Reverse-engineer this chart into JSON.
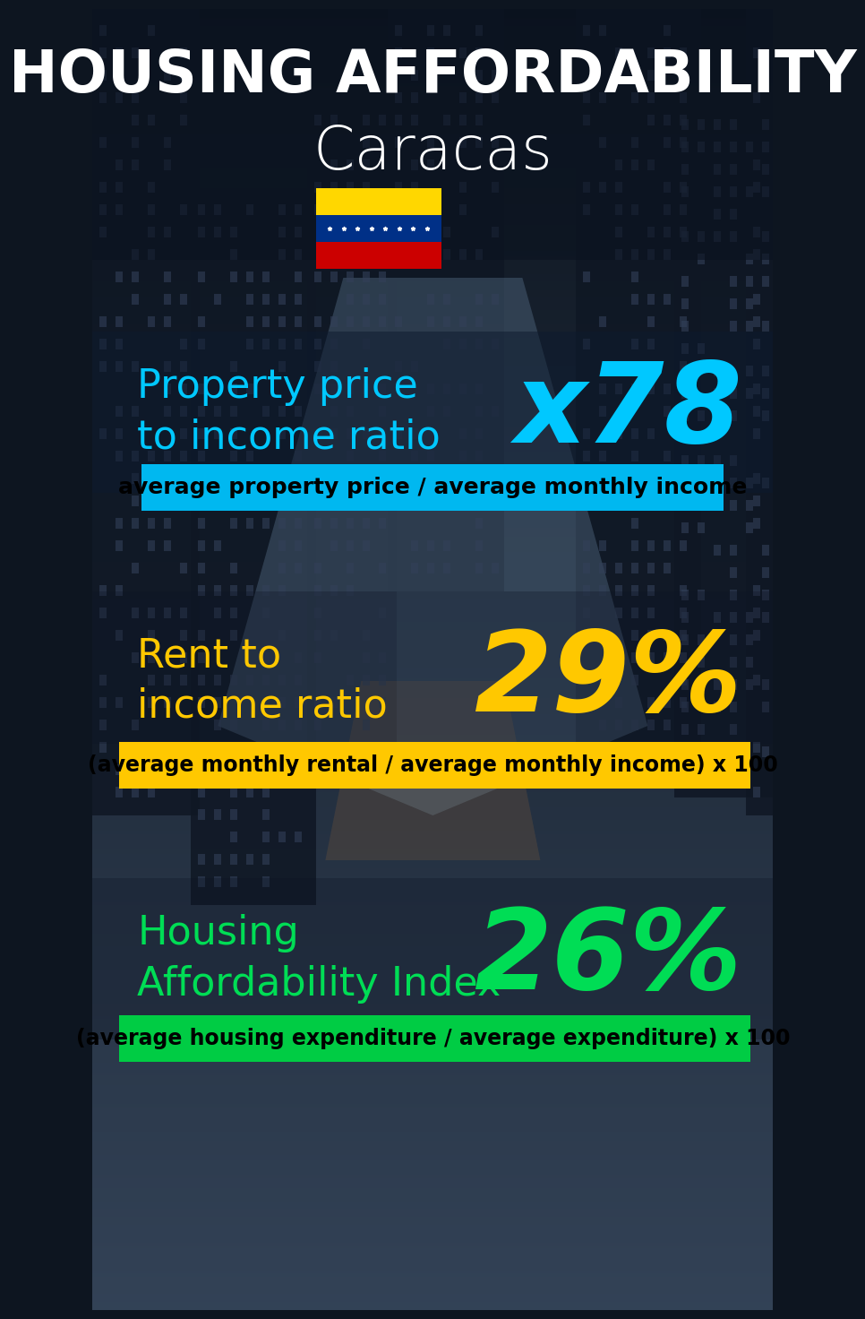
{
  "title_line1": "HOUSING AFFORDABILITY",
  "title_line2": "Caracas",
  "bg_color": "#0d1520",
  "title_color": "#ffffff",
  "section1_label": "Property price\nto income ratio",
  "section1_value": "x78",
  "section1_label_color": "#00c8ff",
  "section1_value_color": "#00c8ff",
  "section1_banner_text": "average property price / average monthly income",
  "section1_banner_bg": "#00b8f0",
  "section1_banner_text_color": "#000000",
  "section2_label": "Rent to\nincome ratio",
  "section2_value": "29%",
  "section2_label_color": "#ffc800",
  "section2_value_color": "#ffc800",
  "section2_banner_text": "(average monthly rental / average monthly income) x 100",
  "section2_banner_bg": "#ffc800",
  "section2_banner_text_color": "#000000",
  "section3_label": "Housing\nAffordability Index",
  "section3_value": "26%",
  "section3_label_color": "#00dd55",
  "section3_value_color": "#00dd55",
  "section3_banner_text": "(average housing expenditure / average expenditure) x 100",
  "section3_banner_bg": "#00cc44",
  "section3_banner_text_color": "#000000",
  "flag_colors": [
    "#ffd700",
    "#003087",
    "#cc0000"
  ]
}
